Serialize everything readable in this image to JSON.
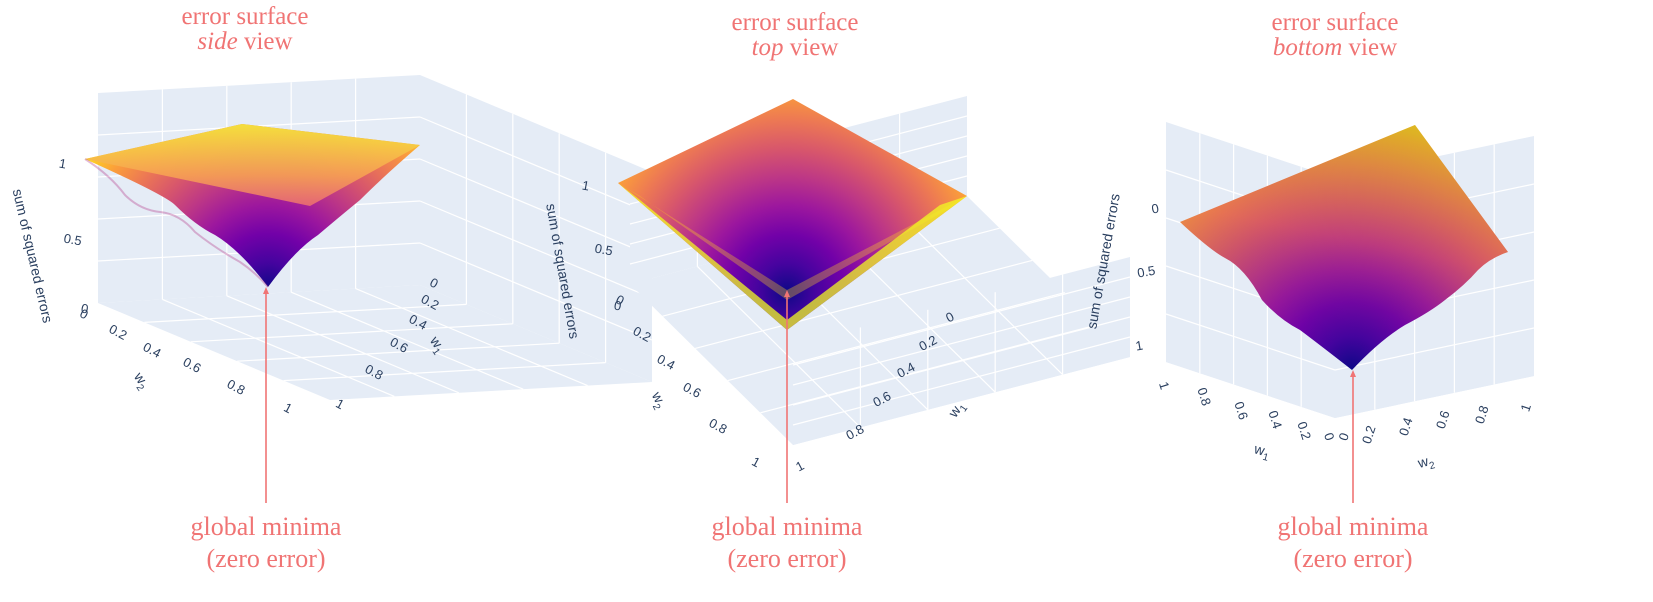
{
  "colors": {
    "annotation": "#f07474",
    "scene_background": "#e5ecf6",
    "grid": "#ffffff",
    "tick_text": "#2a3f5f",
    "colorscale": [
      "#0d0887",
      "#46039f",
      "#7201a8",
      "#9c179e",
      "#bd3786",
      "#d8576b",
      "#ed7953",
      "#fb9f3a",
      "#fdca26",
      "#f0f921"
    ]
  },
  "chart_data": [
    {
      "type": "surface",
      "view": "side",
      "title": "error surface",
      "subtitle": {
        "emph": "side",
        "rest": " view"
      },
      "annotation": {
        "line1": "global minima",
        "line2": "(zero error)"
      },
      "zlabel": "sum of squared errors",
      "xlabel": "w",
      "xlabel_sub": "1",
      "ylabel": "w",
      "ylabel_sub": "2",
      "x_ticks": [
        "0",
        "0.2",
        "0.4",
        "0.6",
        "0.8",
        "1"
      ],
      "y_ticks": [
        "0",
        "0.2",
        "0.4",
        "0.6",
        "0.8",
        "1"
      ],
      "z_ticks": [
        "0",
        "0.5",
        "1"
      ],
      "x_range": [
        0,
        1
      ],
      "y_range": [
        0,
        1
      ],
      "z_range": [
        0,
        1
      ],
      "minimum": {
        "w1": 0,
        "w2": 1,
        "z": 0
      },
      "colorscale": "plasma"
    },
    {
      "type": "surface",
      "view": "top",
      "title": "error surface",
      "subtitle": {
        "emph": "top",
        "rest": " view"
      },
      "annotation": {
        "line1": "global minima",
        "line2": "(zero error)"
      },
      "zlabel": "sum of squared errors",
      "xlabel": "w",
      "xlabel_sub": "1",
      "ylabel": "w",
      "ylabel_sub": "2",
      "x_ticks": [
        "0",
        "0.2",
        "0.4",
        "0.6",
        "0.8",
        "1"
      ],
      "y_ticks": [
        "0",
        "0.2",
        "0.4",
        "0.6",
        "0.8",
        "1"
      ],
      "z_ticks": [
        "0",
        "0.5",
        "1"
      ],
      "x_range": [
        0,
        1
      ],
      "y_range": [
        0,
        1
      ],
      "z_range": [
        0,
        1
      ],
      "minimum": {
        "w1": 1,
        "w2": 1,
        "z": 0
      },
      "colorscale": "plasma"
    },
    {
      "type": "surface",
      "view": "bottom",
      "title": "error surface",
      "subtitle": {
        "emph": "bottom",
        "rest": " view"
      },
      "annotation": {
        "line1": "global minima",
        "line2": "(zero error)"
      },
      "zlabel": "sum of squared errors",
      "xlabel": "w",
      "xlabel_sub": "1",
      "ylabel": "w",
      "ylabel_sub": "2",
      "x_ticks": [
        "1",
        "0.8",
        "0.6",
        "0.4",
        "0.2",
        "0"
      ],
      "y_ticks": [
        "0",
        "0.2",
        "0.4",
        "0.6",
        "0.8",
        "1"
      ],
      "z_ticks": [
        "0",
        "0.5",
        "1"
      ],
      "x_range": [
        0,
        1
      ],
      "y_range": [
        0,
        1
      ],
      "z_range": [
        0,
        1
      ],
      "minimum": {
        "w1": 0,
        "w2": 0,
        "z": 0
      },
      "colorscale": "plasma"
    }
  ]
}
